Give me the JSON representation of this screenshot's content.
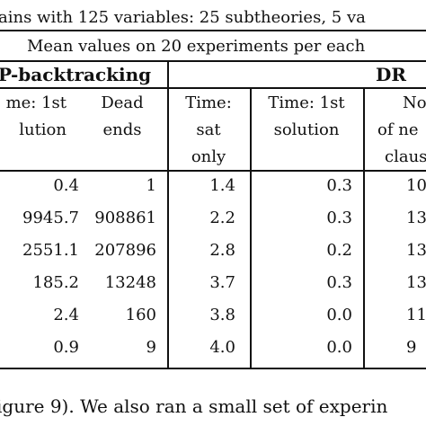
{
  "title": "ains with 125 variables: 25 subtheories, 5 va",
  "subtitle": "Mean values on 20 experiments per each",
  "groups": [
    "P-backtracking",
    "DR"
  ],
  "columns": [
    {
      "lines": [
        "me: 1st",
        "lution"
      ]
    },
    {
      "lines": [
        "Dead",
        "ends"
      ]
    },
    {
      "lines": [
        "Time:",
        "sat",
        "only"
      ]
    },
    {
      "lines": [
        "Time: 1st",
        "solution"
      ]
    },
    {
      "lines": [
        "No.",
        "of ne",
        "clause"
      ]
    }
  ],
  "rows": [
    [
      "0.4",
      "1",
      "1.4",
      "0.3",
      "10"
    ],
    [
      "9945.7",
      "908861",
      "2.2",
      "0.3",
      "13"
    ],
    [
      "2551.1",
      "207896",
      "2.8",
      "0.2",
      "13"
    ],
    [
      "185.2",
      "13248",
      "3.7",
      "0.3",
      "13"
    ],
    [
      "2.4",
      "160",
      "3.8",
      "0.0",
      "11"
    ],
    [
      "0.9",
      "9",
      "4.0",
      "0.0",
      "9"
    ]
  ],
  "footer": "igure 9). We also ran a small set of experin"
}
